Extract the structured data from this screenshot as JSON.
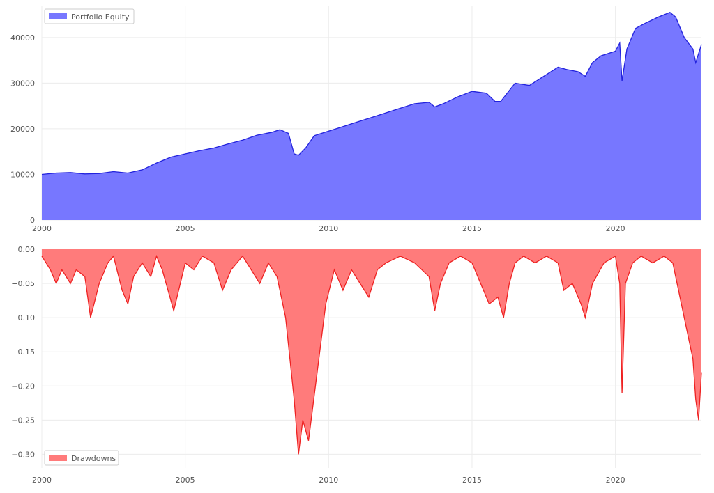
{
  "chart_data": [
    {
      "type": "area",
      "title": "",
      "xlabel": "",
      "ylabel": "",
      "xlim": [
        2000,
        2023
      ],
      "ylim": [
        0,
        47000
      ],
      "x_ticks": [
        "2000",
        "2005",
        "2010",
        "2015",
        "2020"
      ],
      "y_ticks": [
        "0",
        "10000",
        "20000",
        "30000",
        "40000"
      ],
      "grid": true,
      "legend_position": "top-left",
      "colors": {
        "fill": "#7777ff",
        "line": "#2222dd"
      },
      "series": [
        {
          "name": "Portfolio Equity",
          "x": [
            2000.0,
            2000.5,
            2001.0,
            2001.5,
            2002.0,
            2002.5,
            2003.0,
            2003.5,
            2004.0,
            2004.5,
            2005.0,
            2005.5,
            2006.0,
            2006.5,
            2007.0,
            2007.5,
            2008.0,
            2008.3,
            2008.6,
            2008.8,
            2008.95,
            2009.2,
            2009.5,
            2010.0,
            2010.5,
            2011.0,
            2011.5,
            2012.0,
            2012.5,
            2013.0,
            2013.5,
            2013.7,
            2014.0,
            2014.5,
            2015.0,
            2015.5,
            2015.8,
            2016.0,
            2016.5,
            2017.0,
            2017.5,
            2018.0,
            2018.3,
            2018.7,
            2018.95,
            2019.2,
            2019.5,
            2020.0,
            2020.15,
            2020.23,
            2020.4,
            2020.7,
            2021.0,
            2021.5,
            2021.9,
            2022.1,
            2022.4,
            2022.7,
            2022.8,
            2023.0
          ],
          "values": [
            10000,
            10300,
            10400,
            10100,
            10200,
            10600,
            10300,
            11000,
            12500,
            13800,
            14500,
            15200,
            15800,
            16700,
            17500,
            18600,
            19200,
            19800,
            19000,
            14500,
            14200,
            15800,
            18500,
            19500,
            20500,
            21500,
            22500,
            23500,
            24500,
            25500,
            25800,
            24800,
            25500,
            27000,
            28200,
            27800,
            26000,
            26000,
            30000,
            29500,
            31500,
            33500,
            33000,
            32500,
            31500,
            34500,
            36000,
            37000,
            38800,
            30500,
            37500,
            42000,
            43000,
            44500,
            45500,
            44500,
            40000,
            37500,
            34500,
            38500
          ]
        }
      ]
    },
    {
      "type": "area",
      "title": "",
      "xlabel": "",
      "ylabel": "",
      "xlim": [
        2000,
        2023
      ],
      "ylim": [
        -0.32,
        0.0
      ],
      "x_ticks": [
        "2000",
        "2005",
        "2010",
        "2015",
        "2020"
      ],
      "y_ticks": [
        "0.00",
        "−0.05",
        "−0.10",
        "−0.15",
        "−0.20",
        "−0.25",
        "−0.30"
      ],
      "grid": true,
      "legend_position": "bottom-left",
      "colors": {
        "fill": "#ff7b7b",
        "line": "#ee2222"
      },
      "series": [
        {
          "name": "Drawdowns",
          "x": [
            2000.0,
            2000.3,
            2000.5,
            2000.7,
            2001.0,
            2001.2,
            2001.5,
            2001.7,
            2002.0,
            2002.3,
            2002.5,
            2002.8,
            2003.0,
            2003.2,
            2003.5,
            2003.8,
            2004.0,
            2004.2,
            2004.4,
            2004.6,
            2005.0,
            2005.3,
            2005.6,
            2006.0,
            2006.3,
            2006.6,
            2007.0,
            2007.3,
            2007.6,
            2007.9,
            2008.2,
            2008.5,
            2008.8,
            2008.95,
            2009.1,
            2009.3,
            2009.6,
            2009.9,
            2010.2,
            2010.5,
            2010.8,
            2011.1,
            2011.4,
            2011.7,
            2012.0,
            2012.5,
            2013.0,
            2013.5,
            2013.7,
            2013.9,
            2014.2,
            2014.6,
            2015.0,
            2015.3,
            2015.6,
            2015.9,
            2016.1,
            2016.3,
            2016.5,
            2016.8,
            2017.2,
            2017.6,
            2018.0,
            2018.2,
            2018.5,
            2018.8,
            2018.95,
            2019.2,
            2019.6,
            2020.0,
            2020.15,
            2020.23,
            2020.35,
            2020.6,
            2020.9,
            2021.3,
            2021.7,
            2022.0,
            2022.2,
            2022.5,
            2022.7,
            2022.8,
            2022.9,
            2023.0
          ],
          "values": [
            -0.01,
            -0.03,
            -0.05,
            -0.03,
            -0.05,
            -0.03,
            -0.04,
            -0.1,
            -0.05,
            -0.02,
            -0.01,
            -0.06,
            -0.08,
            -0.04,
            -0.02,
            -0.04,
            -0.01,
            -0.03,
            -0.06,
            -0.09,
            -0.02,
            -0.03,
            -0.01,
            -0.02,
            -0.06,
            -0.03,
            -0.01,
            -0.03,
            -0.05,
            -0.02,
            -0.04,
            -0.1,
            -0.22,
            -0.3,
            -0.25,
            -0.28,
            -0.18,
            -0.08,
            -0.03,
            -0.06,
            -0.03,
            -0.05,
            -0.07,
            -0.03,
            -0.02,
            -0.01,
            -0.02,
            -0.04,
            -0.09,
            -0.05,
            -0.02,
            -0.01,
            -0.02,
            -0.05,
            -0.08,
            -0.07,
            -0.1,
            -0.05,
            -0.02,
            -0.01,
            -0.02,
            -0.01,
            -0.02,
            -0.06,
            -0.05,
            -0.08,
            -0.1,
            -0.05,
            -0.02,
            -0.01,
            -0.05,
            -0.21,
            -0.05,
            -0.02,
            -0.01,
            -0.02,
            -0.01,
            -0.02,
            -0.06,
            -0.12,
            -0.16,
            -0.22,
            -0.25,
            -0.18
          ]
        }
      ]
    }
  ]
}
